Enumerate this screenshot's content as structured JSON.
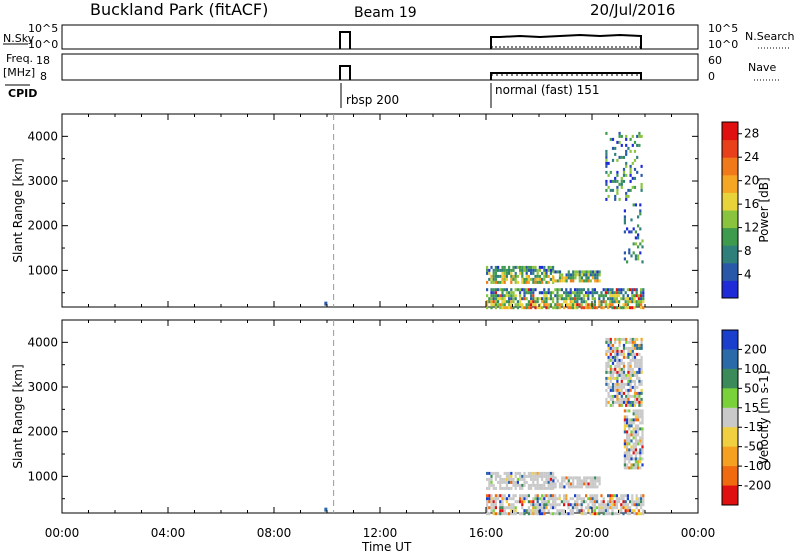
{
  "header": {
    "station": "Buckland Park (fitACF)",
    "beam": "Beam 19",
    "date": "20/Jul/2016"
  },
  "top_strips": {
    "nsky": {
      "label": "N.Sky",
      "ticks": [
        "10^5",
        "10^0"
      ],
      "right_label": "N.Search",
      "right_ticks": [
        "10^5",
        "10^0"
      ]
    },
    "freq": {
      "label_line1": "Freq.",
      "label_line2": "[MHz]",
      "ticks": [
        "18",
        "8"
      ],
      "right_label": "Nave",
      "right_ticks": [
        "60",
        "0"
      ]
    },
    "cpid": {
      "label": "CPID",
      "modes": [
        "rbsp 200",
        "normal (fast) 151"
      ]
    }
  },
  "chart_data": [
    {
      "type": "heatmap",
      "panel": "power",
      "xlabel": "",
      "ylabel": "Slant Range [km]",
      "x_ticks": [
        "00:00",
        "04:00",
        "08:00",
        "12:00",
        "16:00",
        "20:00",
        "00:00"
      ],
      "y_ticks": [
        1000,
        2000,
        3000,
        4000
      ],
      "ylim": [
        180,
        4500
      ],
      "xlim_hours": [
        0,
        24
      ],
      "colorbar": {
        "label": "Power [dB]",
        "ticks": [
          4,
          8,
          12,
          16,
          20,
          24,
          28
        ],
        "range": [
          0,
          30
        ],
        "colors": [
          "#1f2bd6",
          "#2a58a8",
          "#2f7f7a",
          "#3e9a4c",
          "#8ac43f",
          "#e8d33a",
          "#f5a623",
          "#f07a1a",
          "#e8401a",
          "#e01010"
        ]
      },
      "scatter_regions": [
        {
          "t": [
            16.0,
            21.9
          ],
          "r": [
            180,
            600
          ],
          "level": "mixed"
        },
        {
          "t": [
            16.0,
            18.5
          ],
          "r": [
            700,
            1100
          ],
          "level": "mixed"
        },
        {
          "t": [
            18.5,
            20.3
          ],
          "r": [
            750,
            1000
          ],
          "level": "mixed"
        },
        {
          "t": [
            21.2,
            21.9
          ],
          "r": [
            1200,
            2500
          ],
          "level": "low"
        },
        {
          "t": [
            20.5,
            21.9
          ],
          "r": [
            2600,
            4100
          ],
          "level": "low"
        }
      ]
    },
    {
      "type": "heatmap",
      "panel": "velocity",
      "xlabel": "Time UT",
      "ylabel": "Slant Range [km]",
      "x_ticks": [
        "00:00",
        "04:00",
        "08:00",
        "12:00",
        "16:00",
        "20:00",
        "00:00"
      ],
      "y_ticks": [
        1000,
        2000,
        3000,
        4000
      ],
      "ylim": [
        180,
        4500
      ],
      "xlim_hours": [
        0,
        24
      ],
      "colorbar": {
        "label": "Velocity [m s-1]",
        "ticks": [
          200,
          100,
          50,
          15,
          -15,
          -50,
          -100,
          -200
        ],
        "colors": [
          "#1a3fcc",
          "#2a6aa8",
          "#3a8a5a",
          "#7ad23a",
          "#c9c9c9",
          "#f0d040",
          "#f5a020",
          "#f06a10",
          "#e01010"
        ]
      },
      "scatter_regions": [
        {
          "t": [
            16.0,
            21.9
          ],
          "r": [
            180,
            600
          ],
          "level": "mixed"
        },
        {
          "t": [
            16.0,
            18.5
          ],
          "r": [
            700,
            1100
          ],
          "level": "ground"
        },
        {
          "t": [
            18.5,
            20.3
          ],
          "r": [
            750,
            1000
          ],
          "level": "ground"
        },
        {
          "t": [
            21.2,
            21.9
          ],
          "r": [
            1200,
            2500
          ],
          "level": "mixed"
        },
        {
          "t": [
            20.5,
            21.9
          ],
          "r": [
            2600,
            4100
          ],
          "level": "mixed"
        }
      ]
    }
  ]
}
